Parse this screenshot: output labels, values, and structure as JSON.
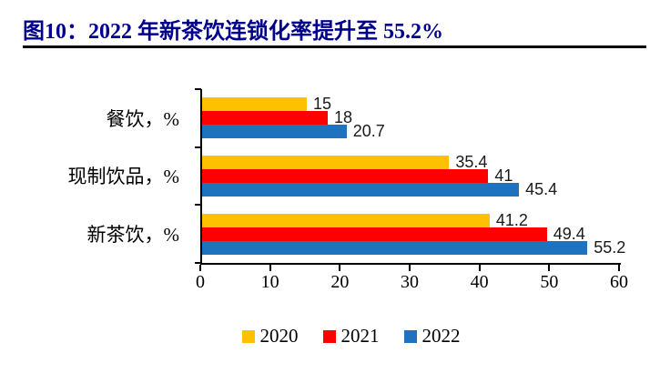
{
  "title": "图10：2022 年新茶饮连锁化率提升至 55.2%",
  "colors": {
    "title": "#00008B",
    "axis": "#000000",
    "series_2020": "#FFC000",
    "series_2021": "#FF0000",
    "series_2022": "#1F72BE"
  },
  "chart_data": {
    "type": "bar",
    "orientation": "horizontal",
    "title": "图10：2022 年新茶饮连锁化率提升至 55.2%",
    "categories": [
      "餐饮，%",
      "现制饮品，%",
      "新茶饮，%"
    ],
    "series": [
      {
        "name": "2020",
        "color": "#FFC000",
        "values": [
          15,
          35.4,
          41.2
        ],
        "labels": [
          "15",
          "35.4",
          "41.2"
        ]
      },
      {
        "name": "2021",
        "color": "#FF0000",
        "values": [
          18,
          41,
          49.4
        ],
        "labels": [
          "18",
          "41",
          "49.4"
        ]
      },
      {
        "name": "2022",
        "color": "#1F72BE",
        "values": [
          20.7,
          45.4,
          55.2
        ],
        "labels": [
          "20.7",
          "45.4",
          "55.2"
        ]
      }
    ],
    "xlim": [
      0,
      60
    ],
    "x_ticks": [
      "0",
      "10",
      "20",
      "30",
      "40",
      "50",
      "60"
    ],
    "grid": false,
    "legend": [
      "2020",
      "2021",
      "2022"
    ],
    "legend_position": "bottom"
  }
}
